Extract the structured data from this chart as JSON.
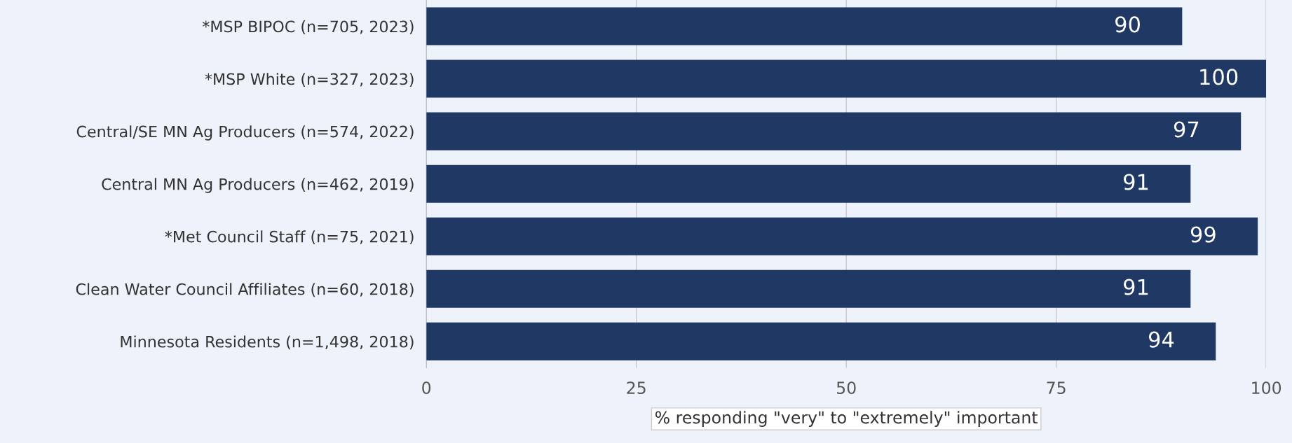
{
  "chart_data": {
    "type": "bar",
    "orientation": "horizontal",
    "categories": [
      "*MSP BIPOC (n=705, 2023)",
      "*MSP White (n=327, 2023)",
      "Central/SE MN Ag Producers (n=574, 2022)",
      "Central MN Ag Producers (n=462, 2019)",
      "*Met Council Staff (n=75, 2021)",
      "Clean Water Council Affiliates (n=60, 2018)",
      "Minnesota Residents (n=1,498, 2018)"
    ],
    "values": [
      90,
      100,
      97,
      91,
      99,
      91,
      94
    ],
    "color": "#203864",
    "xlabel": "% responding \"very\" to \"extremely\" important",
    "xlim": [
      0,
      100
    ],
    "xticks": [
      0,
      25,
      50,
      75,
      100
    ],
    "grid": "x",
    "data_labels": true
  }
}
